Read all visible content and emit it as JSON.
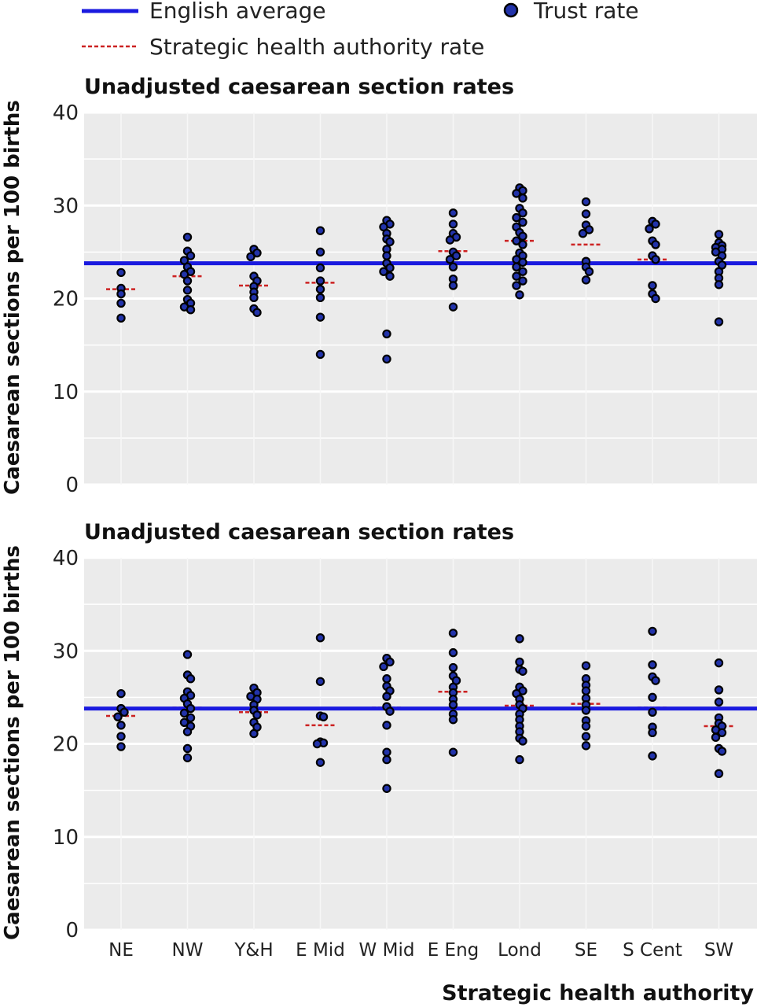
{
  "legend": {
    "english_average": "English average",
    "trust_rate": "Trust rate",
    "sha_rate": "Strategic health authority rate"
  },
  "colors": {
    "english_average": "#1a1adf",
    "sha_rate": "#cc2222",
    "trust_dot": "#2233aa",
    "panel_bg": "#ebebeb"
  },
  "x_axis_label": "Strategic health authority",
  "chart_data": [
    {
      "type": "scatter",
      "title": "Unadjusted caesarean section rates",
      "ylabel": "Caesarean sections per 100 births",
      "ylim": [
        0,
        40
      ],
      "yticks": [
        0,
        10,
        20,
        30,
        40
      ],
      "grid": true,
      "categories": [
        "NE",
        "NW",
        "Y&H",
        "E Mid",
        "W Mid",
        "E Eng",
        "Lond",
        "SE",
        "S Cent",
        "SW"
      ],
      "english_average": 23.8,
      "sha_rates": [
        21.0,
        22.4,
        21.4,
        21.7,
        23.8,
        25.1,
        26.2,
        25.8,
        24.2,
        23.8
      ],
      "trust_rates": [
        [
          22.8,
          21.1,
          20.5,
          19.5,
          17.9
        ],
        [
          26.6,
          25.1,
          24.6,
          24.1,
          23.4,
          22.9,
          22.6,
          21.9,
          20.9,
          19.9,
          19.5,
          19.1,
          18.8
        ],
        [
          25.3,
          24.9,
          24.5,
          22.4,
          21.9,
          21.3,
          20.7,
          20.1,
          18.9,
          18.5
        ],
        [
          27.3,
          25.0,
          23.3,
          21.9,
          21.0,
          20.1,
          18.0,
          14.0
        ],
        [
          28.4,
          28.0,
          27.7,
          27.0,
          26.4,
          26.1,
          25.3,
          24.6,
          23.8,
          23.3,
          22.9,
          22.4,
          16.2,
          13.5
        ],
        [
          29.2,
          28.0,
          27.0,
          26.6,
          26.3,
          25.0,
          24.6,
          24.2,
          23.4,
          22.1,
          21.4,
          19.1
        ],
        [
          31.9,
          31.6,
          31.3,
          30.8,
          29.7,
          29.2,
          28.7,
          28.2,
          27.7,
          27.1,
          26.7,
          26.2,
          25.8,
          24.9,
          24.6,
          24.2,
          23.9,
          23.4,
          22.9,
          22.4,
          21.9,
          21.4,
          20.4
        ],
        [
          30.4,
          29.1,
          27.9,
          27.4,
          27.0,
          24.0,
          23.4,
          22.9,
          22.0
        ],
        [
          28.3,
          28.0,
          27.5,
          26.2,
          25.8,
          24.6,
          24.2,
          21.4,
          20.5,
          20.0
        ],
        [
          26.9,
          26.0,
          25.7,
          25.5,
          25.3,
          25.0,
          24.6,
          24.0,
          23.6,
          22.9,
          22.2,
          21.5,
          17.5
        ]
      ]
    },
    {
      "type": "scatter",
      "title": "Unadjusted caesarean section rates",
      "ylabel": "Caesarean sections per 100 births",
      "ylim": [
        0,
        40
      ],
      "yticks": [
        0,
        10,
        20,
        30,
        40
      ],
      "grid": true,
      "categories": [
        "NE",
        "NW",
        "Y&H",
        "E Mid",
        "W Mid",
        "E Eng",
        "Lond",
        "SE",
        "S Cent",
        "SW"
      ],
      "english_average": 23.8,
      "sha_rates": [
        23.0,
        23.9,
        23.4,
        22.0,
        23.9,
        25.6,
        24.1,
        24.3,
        23.9,
        21.9
      ],
      "trust_rates": [
        [
          25.4,
          23.8,
          23.4,
          22.9,
          22.0,
          20.8,
          19.7
        ],
        [
          29.6,
          27.4,
          27.0,
          25.6,
          25.2,
          24.9,
          24.3,
          23.8,
          23.3,
          22.8,
          22.3,
          21.9,
          21.3,
          19.5,
          18.5
        ],
        [
          26.0,
          25.5,
          25.1,
          24.8,
          24.2,
          23.6,
          23.1,
          22.3,
          21.8,
          21.1
        ],
        [
          31.4,
          26.7,
          23.0,
          22.9,
          20.2,
          20.1,
          20.0,
          18.0
        ],
        [
          29.2,
          28.8,
          28.3,
          27.0,
          26.2,
          25.7,
          25.1,
          24.0,
          23.5,
          22.0,
          19.1,
          18.3,
          15.2
        ],
        [
          31.9,
          29.8,
          28.2,
          27.3,
          26.8,
          26.1,
          25.5,
          24.8,
          24.2,
          23.2,
          22.6,
          19.1
        ],
        [
          31.3,
          28.8,
          28.0,
          27.8,
          26.1,
          25.7,
          25.4,
          24.8,
          24.2,
          23.8,
          23.2,
          22.6,
          21.9,
          21.3,
          20.6,
          20.3,
          18.3
        ],
        [
          28.4,
          27.0,
          26.3,
          25.7,
          24.9,
          24.2,
          23.6,
          22.5,
          21.9,
          20.8,
          19.8
        ],
        [
          32.1,
          28.5,
          27.2,
          26.8,
          25.0,
          23.4,
          21.8,
          21.2,
          18.7
        ],
        [
          28.7,
          25.8,
          24.5,
          22.8,
          22.2,
          21.9,
          21.5,
          21.2,
          20.7,
          19.5,
          19.2,
          16.8
        ]
      ]
    }
  ]
}
